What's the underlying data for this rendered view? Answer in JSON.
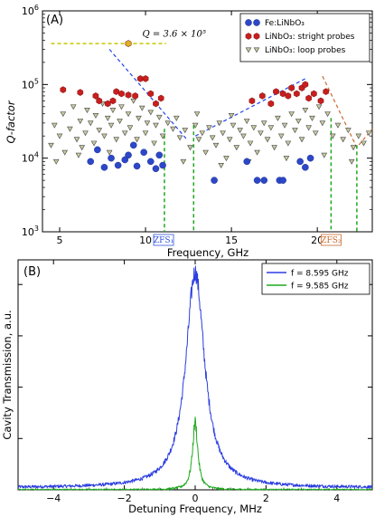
{
  "chart_data": [
    {
      "panel_label": "(A)",
      "type": "scatter",
      "xlabel": "Frequency, GHz",
      "ylabel": "Q-factor",
      "xlim": [
        4,
        23.2
      ],
      "ylim": [
        1000,
        1000000
      ],
      "yscale": "log",
      "grid": false,
      "legend_position": "top-right",
      "x_ticks": [
        5,
        10,
        15,
        20
      ],
      "y_ticks": [
        {
          "value": 1000,
          "base": "10",
          "exp": "3"
        },
        {
          "value": 10000,
          "base": "10",
          "exp": "4"
        },
        {
          "value": 100000,
          "base": "10",
          "exp": "5"
        },
        {
          "value": 1000000,
          "base": "10",
          "exp": "6"
        }
      ],
      "annotation": {
        "text": "Q = 3.6 × 10⁵",
        "x": 9.5,
        "y": 400000
      },
      "reference_line": {
        "y": 360000,
        "x": [
          4.5,
          11.2
        ],
        "color": "#c8c800"
      },
      "zfs_markers": [
        {
          "label": "ZFS₁",
          "x": 11.05,
          "color": "#3355dd"
        },
        {
          "label": "ZFS₂",
          "x": 20.8,
          "color": "#c86a30"
        }
      ],
      "trend_lines": [
        {
          "color": "#2244ee",
          "points": [
            [
              7.9,
              300000
            ],
            [
              12.4,
              18000
            ]
          ]
        },
        {
          "color": "#2244ee",
          "points": [
            [
              12.9,
              20000
            ],
            [
              19.3,
              120000
            ]
          ]
        },
        {
          "color": "#c86a30",
          "points": [
            [
              20.3,
              130000
            ],
            [
              22.3,
              14000
            ],
            [
              23.2,
              25000
            ]
          ]
        }
      ],
      "vertical_dashed_lines": [
        {
          "x": 11.1,
          "top": 25000
        },
        {
          "x": 12.8,
          "top": 28000
        },
        {
          "x": 20.8,
          "top": 35000
        },
        {
          "x": 22.3,
          "top": 15000
        }
      ],
      "series": [
        {
          "name": "Fe:LiNbO₃",
          "marker": "circle",
          "color": "#2c47c8",
          "points": [
            [
              6.8,
              9000
            ],
            [
              7.2,
              13000
            ],
            [
              7.6,
              7500
            ],
            [
              8.0,
              10000
            ],
            [
              8.4,
              8000
            ],
            [
              9.0,
              11000
            ],
            [
              9.5,
              7800
            ],
            [
              9.9,
              12000
            ],
            [
              10.3,
              9000
            ],
            [
              10.6,
              7200
            ],
            [
              11.0,
              8000
            ],
            [
              10.8,
              11000
            ],
            [
              14.0,
              5000
            ],
            [
              15.9,
              9000
            ],
            [
              16.5,
              5000
            ],
            [
              16.9,
              5000
            ],
            [
              17.8,
              5000
            ],
            [
              18.0,
              5000
            ],
            [
              19.0,
              9000
            ],
            [
              19.3,
              7500
            ],
            [
              19.6,
              10000
            ],
            [
              8.8,
              9500
            ],
            [
              9.3,
              15000
            ]
          ]
        },
        {
          "name": "LiNbO₃: stright probes",
          "marker": "hexagon",
          "color": "#c81e1e",
          "points": [
            [
              5.2,
              85000
            ],
            [
              6.2,
              78000
            ],
            [
              7.1,
              70000
            ],
            [
              7.3,
              60000
            ],
            [
              7.8,
              55000
            ],
            [
              8.1,
              60000
            ],
            [
              8.3,
              80000
            ],
            [
              8.6,
              75000
            ],
            [
              9.0,
              72000
            ],
            [
              9.4,
              70000
            ],
            [
              9.7,
              120000
            ],
            [
              10.0,
              120000
            ],
            [
              10.3,
              75000
            ],
            [
              10.6,
              55000
            ],
            [
              10.9,
              65000
            ],
            [
              9.0,
              360000
            ],
            [
              16.2,
              60000
            ],
            [
              16.8,
              70000
            ],
            [
              17.3,
              55000
            ],
            [
              17.6,
              80000
            ],
            [
              18.0,
              75000
            ],
            [
              18.3,
              70000
            ],
            [
              18.5,
              90000
            ],
            [
              18.8,
              75000
            ],
            [
              19.1,
              90000
            ],
            [
              19.5,
              65000
            ],
            [
              19.8,
              75000
            ],
            [
              20.2,
              60000
            ],
            [
              20.5,
              80000
            ],
            [
              19.3,
              100000
            ]
          ]
        },
        {
          "name": "LiNbO₃: loop probes",
          "marker": "triangle-down",
          "color": "#c8c8a0",
          "points": [
            [
              4.5,
              15000
            ],
            [
              4.7,
              28000
            ],
            [
              5.0,
              20000
            ],
            [
              5.2,
              40000
            ],
            [
              5.3,
              12000
            ],
            [
              5.6,
              25000
            ],
            [
              5.8,
              50000
            ],
            [
              6.0,
              18000
            ],
            [
              6.2,
              32000
            ],
            [
              6.3,
              14000
            ],
            [
              6.5,
              22000
            ],
            [
              6.6,
              45000
            ],
            [
              6.8,
              30000
            ],
            [
              7.0,
              16000
            ],
            [
              7.1,
              38000
            ],
            [
              7.3,
              24000
            ],
            [
              7.5,
              55000
            ],
            [
              7.6,
              20000
            ],
            [
              7.8,
              35000
            ],
            [
              8.0,
              28000
            ],
            [
              8.1,
              45000
            ],
            [
              8.3,
              18000
            ],
            [
              8.5,
              32000
            ],
            [
              8.6,
              50000
            ],
            [
              8.8,
              22000
            ],
            [
              9.0,
              40000
            ],
            [
              9.1,
              26000
            ],
            [
              9.3,
              60000
            ],
            [
              9.5,
              18000
            ],
            [
              9.6,
              35000
            ],
            [
              9.8,
              48000
            ],
            [
              10.0,
              22000
            ],
            [
              10.1,
              30000
            ],
            [
              10.3,
              42000
            ],
            [
              10.5,
              16000
            ],
            [
              10.6,
              28000
            ],
            [
              10.8,
              36000
            ],
            [
              11.0,
              20000
            ],
            [
              11.3,
              30000
            ],
            [
              11.6,
              25000
            ],
            [
              12.0,
              19000
            ],
            [
              12.3,
              24000
            ],
            [
              12.6,
              14000
            ],
            [
              12.9,
              28000
            ],
            [
              13.1,
              18000
            ],
            [
              13.3,
              22000
            ],
            [
              13.5,
              12000
            ],
            [
              13.7,
              26000
            ],
            [
              13.9,
              19000
            ],
            [
              14.1,
              15000
            ],
            [
              14.3,
              30000
            ],
            [
              14.5,
              22000
            ],
            [
              14.7,
              10000
            ],
            [
              14.9,
              18000
            ],
            [
              15.1,
              28000
            ],
            [
              15.3,
              14000
            ],
            [
              15.5,
              24000
            ],
            [
              15.7,
              20000
            ],
            [
              15.9,
              32000
            ],
            [
              16.1,
              16000
            ],
            [
              16.3,
              26000
            ],
            [
              16.5,
              12000
            ],
            [
              16.7,
              22000
            ],
            [
              16.9,
              30000
            ],
            [
              17.1,
              18000
            ],
            [
              17.3,
              26000
            ],
            [
              17.5,
              14000
            ],
            [
              17.7,
              35000
            ],
            [
              17.9,
              20000
            ],
            [
              18.1,
              28000
            ],
            [
              18.3,
              16000
            ],
            [
              18.5,
              40000
            ],
            [
              18.7,
              24000
            ],
            [
              18.9,
              32000
            ],
            [
              19.1,
              18000
            ],
            [
              19.3,
              45000
            ],
            [
              19.5,
              26000
            ],
            [
              19.7,
              35000
            ],
            [
              19.9,
              22000
            ],
            [
              20.1,
              50000
            ],
            [
              20.3,
              30000
            ],
            [
              20.6,
              40000
            ],
            [
              20.9,
              20000
            ],
            [
              21.2,
              28000
            ],
            [
              21.5,
              18000
            ],
            [
              21.8,
              24000
            ],
            [
              22.1,
              14000
            ],
            [
              22.4,
              20000
            ],
            [
              22.7,
              16000
            ],
            [
              23.0,
              22000
            ],
            [
              4.8,
              9000
            ],
            [
              6.1,
              11000
            ],
            [
              7.9,
              12000
            ],
            [
              12.2,
              9000
            ],
            [
              14.4,
              8000
            ],
            [
              16.0,
              9000
            ],
            [
              18.2,
              10000
            ],
            [
              20.4,
              11000
            ],
            [
              22.0,
              9000
            ],
            [
              11.8,
              35000
            ],
            [
              13.0,
              40000
            ],
            [
              15.0,
              38000
            ]
          ]
        }
      ]
    },
    {
      "panel_label": "(B)",
      "type": "line",
      "xlabel": "Detuning Frequency, MHz",
      "ylabel": "Cavity Transmission, a.u.",
      "xlim": [
        -5,
        5
      ],
      "ylim": [
        0,
        1.12
      ],
      "grid": false,
      "legend_position": "top-right",
      "x_ticks": [
        -4,
        -2,
        0,
        2,
        4
      ],
      "x_tick_labels": [
        "−4",
        "−2",
        "0",
        "2",
        "4"
      ],
      "series": [
        {
          "name": "f = 8.595 GHz",
          "color": "#2b3ee0",
          "center": 0.0,
          "peak": 1.05,
          "gamma": 0.32,
          "baseline": 0.01,
          "noise": 0.03
        },
        {
          "name": "f = 9.585 GHz",
          "color": "#1fa81f",
          "center": 0.0,
          "peak": 0.33,
          "gamma": 0.09,
          "baseline": 0.0,
          "noise": 0.02
        }
      ]
    }
  ]
}
